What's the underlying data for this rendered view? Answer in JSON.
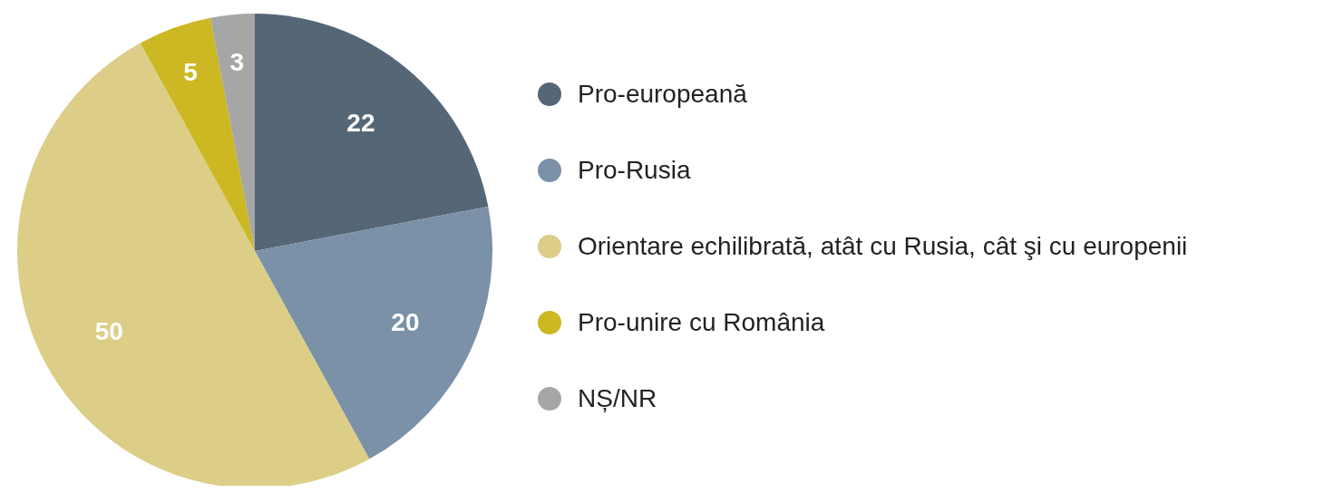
{
  "chart_data": {
    "type": "pie",
    "categories": [
      "Pro-europeană",
      "Pro-Rusia",
      "Orientare echilibrată, atât cu Rusia, cât şi cu europenii",
      "Pro-unire cu România",
      "NȘ/NR"
    ],
    "values": [
      22,
      20,
      50,
      5,
      3
    ],
    "colors": [
      "#556677",
      "#7a91a8",
      "#dccd87",
      "#cbb822",
      "#a6a6a6"
    ],
    "data_labels": true,
    "legend": "right"
  }
}
